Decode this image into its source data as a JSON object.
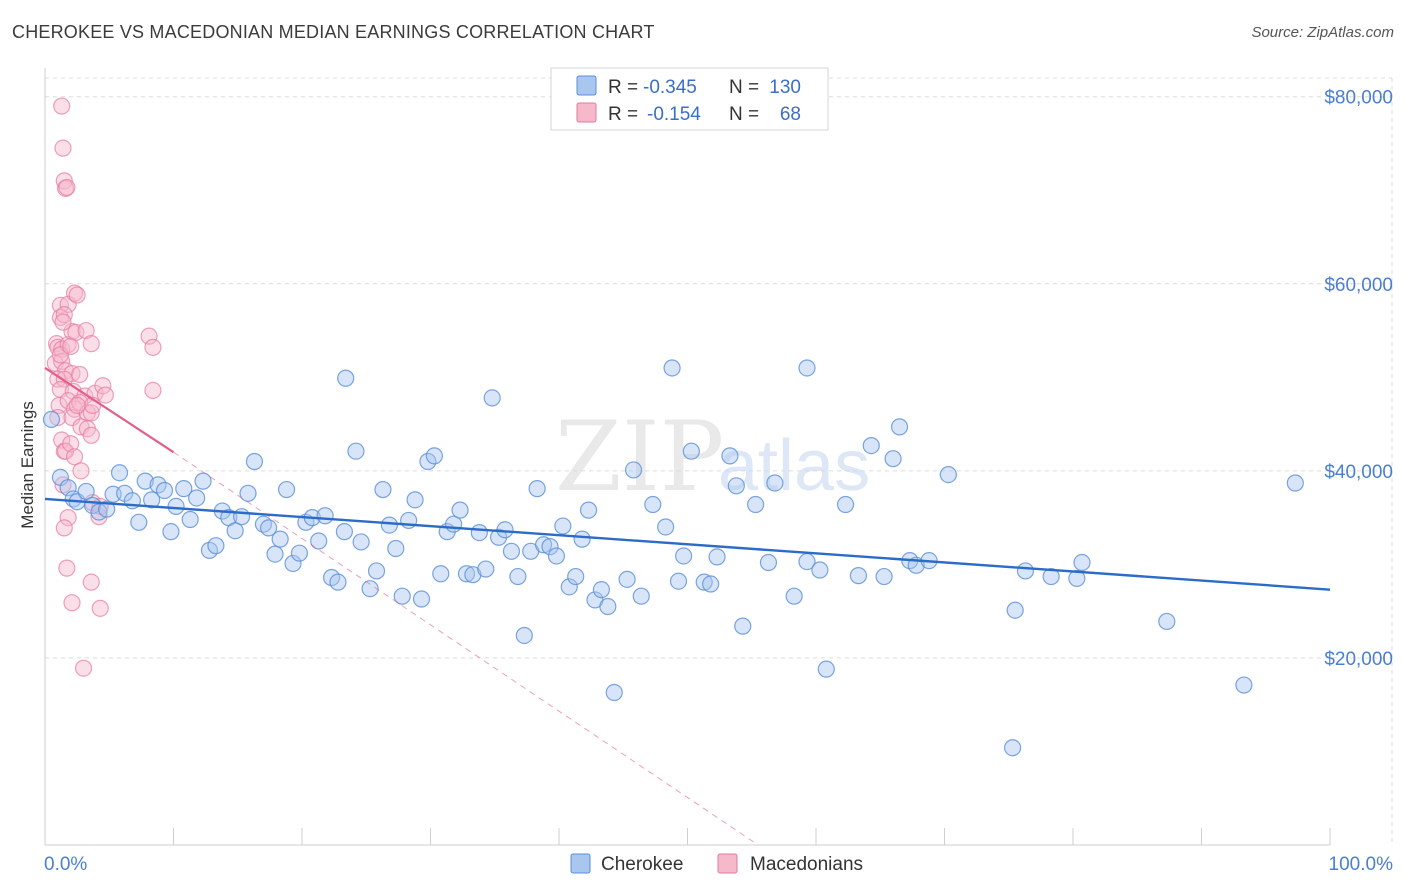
{
  "title": "CHEROKEE VS MACEDONIAN MEDIAN EARNINGS CORRELATION CHART",
  "source": "Source: ZipAtlas.com",
  "watermark": {
    "zip": "ZIP",
    "atlas": "atlas"
  },
  "colors": {
    "cherokee_fill": "#a9c6ef",
    "cherokee_stroke": "#5a8fd8",
    "cherokee_line": "#2b6cc8",
    "macedonian_fill": "#f6b8cb",
    "macedonian_stroke": "#e77a9c",
    "macedonian_line": "#e0608a",
    "grid": "#dcdcdc",
    "axis_text": "#4a7fd0"
  },
  "legend": {
    "r_label": "R =",
    "n_label": "N =",
    "rows": [
      {
        "r": "-0.345",
        "n": "130"
      },
      {
        "r": "-0.154",
        "n": "68"
      }
    ]
  },
  "bottom_legend": [
    "Cherokee",
    "Macedonians"
  ],
  "chart_data": {
    "type": "scatter",
    "ylabel": "Median Earnings",
    "xlim": [
      0,
      100
    ],
    "ylim": [
      0,
      80000
    ],
    "x_tick_labels": [
      "0.0%",
      "100.0%"
    ],
    "y_tick_labels": [
      "$20,000",
      "$40,000",
      "$60,000",
      "$80,000"
    ],
    "y_ticks": [
      20000,
      40000,
      60000,
      80000
    ],
    "grid": true,
    "series": [
      {
        "name": "Cherokee",
        "trend": {
          "x": [
            0,
            100
          ],
          "y": [
            37000,
            27300
          ]
        },
        "points": [
          [
            0.5,
            45500
          ],
          [
            1.2,
            39300
          ],
          [
            1.8,
            38200
          ],
          [
            2.2,
            37000
          ],
          [
            2.5,
            36700
          ],
          [
            3.2,
            37800
          ],
          [
            3.7,
            36300
          ],
          [
            4.2,
            35600
          ],
          [
            4.8,
            35900
          ],
          [
            5.3,
            37500
          ],
          [
            5.8,
            39800
          ],
          [
            6.2,
            37600
          ],
          [
            6.8,
            36800
          ],
          [
            7.3,
            34500
          ],
          [
            7.8,
            38900
          ],
          [
            8.3,
            36900
          ],
          [
            8.8,
            38500
          ],
          [
            9.3,
            37900
          ],
          [
            9.8,
            33500
          ],
          [
            10.2,
            36200
          ],
          [
            10.8,
            38100
          ],
          [
            11.3,
            34800
          ],
          [
            11.8,
            37100
          ],
          [
            12.3,
            38900
          ],
          [
            12.8,
            31500
          ],
          [
            13.3,
            32000
          ],
          [
            13.8,
            35700
          ],
          [
            14.3,
            35000
          ],
          [
            14.8,
            33600
          ],
          [
            15.3,
            35100
          ],
          [
            15.8,
            37600
          ],
          [
            16.3,
            41000
          ],
          [
            17.0,
            34300
          ],
          [
            17.4,
            33900
          ],
          [
            17.9,
            31100
          ],
          [
            18.3,
            32700
          ],
          [
            18.8,
            38000
          ],
          [
            19.3,
            30100
          ],
          [
            19.8,
            31200
          ],
          [
            20.3,
            34500
          ],
          [
            20.8,
            35000
          ],
          [
            21.3,
            32500
          ],
          [
            21.8,
            35200
          ],
          [
            22.3,
            28600
          ],
          [
            22.8,
            28100
          ],
          [
            23.3,
            33500
          ],
          [
            23.4,
            49900
          ],
          [
            24.2,
            42100
          ],
          [
            24.6,
            32400
          ],
          [
            25.3,
            27400
          ],
          [
            25.8,
            29300
          ],
          [
            26.3,
            38000
          ],
          [
            26.8,
            34200
          ],
          [
            27.3,
            31700
          ],
          [
            27.8,
            26600
          ],
          [
            28.3,
            34700
          ],
          [
            28.8,
            36900
          ],
          [
            29.3,
            26300
          ],
          [
            29.8,
            41000
          ],
          [
            30.3,
            41600
          ],
          [
            30.8,
            29000
          ],
          [
            31.3,
            33500
          ],
          [
            31.8,
            34300
          ],
          [
            32.3,
            35800
          ],
          [
            32.8,
            29000
          ],
          [
            33.3,
            28900
          ],
          [
            33.8,
            33400
          ],
          [
            34.3,
            29500
          ],
          [
            34.8,
            47800
          ],
          [
            35.3,
            32900
          ],
          [
            35.8,
            33700
          ],
          [
            36.3,
            31400
          ],
          [
            36.8,
            28700
          ],
          [
            37.3,
            22400
          ],
          [
            37.8,
            31400
          ],
          [
            38.3,
            38100
          ],
          [
            38.8,
            32100
          ],
          [
            39.3,
            31900
          ],
          [
            39.8,
            30900
          ],
          [
            40.3,
            34100
          ],
          [
            40.8,
            27600
          ],
          [
            41.3,
            28700
          ],
          [
            41.8,
            32700
          ],
          [
            42.3,
            35800
          ],
          [
            42.8,
            26200
          ],
          [
            43.3,
            27300
          ],
          [
            43.8,
            25500
          ],
          [
            44.3,
            16300
          ],
          [
            45.3,
            28400
          ],
          [
            45.8,
            40100
          ],
          [
            46.4,
            26600
          ],
          [
            47.3,
            36400
          ],
          [
            48.3,
            34000
          ],
          [
            48.8,
            51000
          ],
          [
            49.3,
            28200
          ],
          [
            49.7,
            30900
          ],
          [
            50.3,
            42100
          ],
          [
            51.3,
            28100
          ],
          [
            51.8,
            27900
          ],
          [
            52.3,
            30800
          ],
          [
            53.3,
            41600
          ],
          [
            53.8,
            38400
          ],
          [
            54.3,
            23400
          ],
          [
            55.3,
            36400
          ],
          [
            56.3,
            30200
          ],
          [
            56.8,
            38700
          ],
          [
            58.3,
            26600
          ],
          [
            59.3,
            51000
          ],
          [
            59.3,
            30300
          ],
          [
            60.3,
            29400
          ],
          [
            60.8,
            18800
          ],
          [
            62.3,
            36400
          ],
          [
            63.3,
            28800
          ],
          [
            64.3,
            42700
          ],
          [
            65.3,
            28700
          ],
          [
            66.0,
            41300
          ],
          [
            66.5,
            44700
          ],
          [
            67.3,
            30400
          ],
          [
            67.8,
            29900
          ],
          [
            68.8,
            30400
          ],
          [
            70.3,
            39600
          ],
          [
            75.3,
            10400
          ],
          [
            75.5,
            25100
          ],
          [
            76.3,
            29300
          ],
          [
            78.3,
            28700
          ],
          [
            80.3,
            28500
          ],
          [
            80.7,
            30200
          ],
          [
            87.3,
            23900
          ],
          [
            93.3,
            17100
          ],
          [
            97.3,
            38700
          ]
        ]
      },
      {
        "name": "Macedonians",
        "trend": {
          "x": [
            0,
            10
          ],
          "y": [
            51000,
            42000
          ]
        },
        "trend_ext": {
          "x": [
            10,
            55.5
          ],
          "y": [
            42000,
            0
          ]
        },
        "points": [
          [
            1.3,
            79000
          ],
          [
            1.4,
            74500
          ],
          [
            1.5,
            71000
          ],
          [
            1.6,
            70200
          ],
          [
            1.7,
            70300
          ],
          [
            1.2,
            57700
          ],
          [
            1.8,
            57800
          ],
          [
            2.3,
            59000
          ],
          [
            2.5,
            58800
          ],
          [
            1.2,
            56400
          ],
          [
            1.5,
            56700
          ],
          [
            0.9,
            53600
          ],
          [
            1.0,
            53200
          ],
          [
            1.3,
            53000
          ],
          [
            1.8,
            53500
          ],
          [
            2.1,
            54900
          ],
          [
            2.4,
            54800
          ],
          [
            3.2,
            55000
          ],
          [
            3.6,
            53600
          ],
          [
            8.1,
            54400
          ],
          [
            8.4,
            53200
          ],
          [
            0.8,
            51500
          ],
          [
            1.3,
            51700
          ],
          [
            1.6,
            50700
          ],
          [
            2.1,
            50400
          ],
          [
            1.0,
            49800
          ],
          [
            1.5,
            49800
          ],
          [
            2.7,
            50300
          ],
          [
            1.2,
            48700
          ],
          [
            2.2,
            48500
          ],
          [
            3.1,
            48000
          ],
          [
            3.9,
            48300
          ],
          [
            4.5,
            49100
          ],
          [
            4.7,
            48100
          ],
          [
            8.4,
            48600
          ],
          [
            1.1,
            47000
          ],
          [
            1.8,
            47500
          ],
          [
            2.3,
            46600
          ],
          [
            2.7,
            47300
          ],
          [
            3.3,
            46200
          ],
          [
            3.6,
            46200
          ],
          [
            3.7,
            47000
          ],
          [
            1.0,
            45700
          ],
          [
            2.1,
            45700
          ],
          [
            2.5,
            47000
          ],
          [
            2.8,
            44700
          ],
          [
            3.3,
            44500
          ],
          [
            3.6,
            43800
          ],
          [
            1.3,
            43300
          ],
          [
            1.5,
            42100
          ],
          [
            1.6,
            42100
          ],
          [
            2.0,
            42900
          ],
          [
            2.3,
            41500
          ],
          [
            2.8,
            40000
          ],
          [
            1.4,
            38500
          ],
          [
            3.7,
            36600
          ],
          [
            1.8,
            35000
          ],
          [
            4.2,
            35100
          ],
          [
            4.3,
            36200
          ],
          [
            1.5,
            33900
          ],
          [
            1.7,
            29600
          ],
          [
            3.6,
            28100
          ],
          [
            2.1,
            25900
          ],
          [
            4.3,
            25300
          ],
          [
            3.0,
            18900
          ],
          [
            1.2,
            52400
          ],
          [
            2.0,
            53300
          ],
          [
            1.4,
            55900
          ]
        ]
      }
    ]
  }
}
